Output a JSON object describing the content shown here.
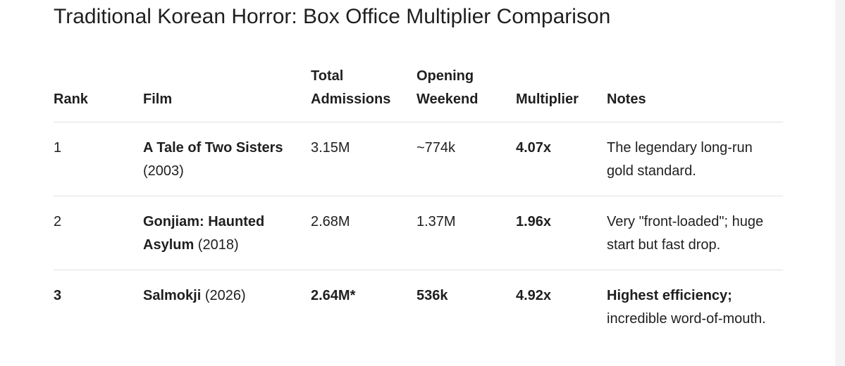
{
  "title": "Traditional Korean Horror: Box Office Multiplier Comparison",
  "columns": {
    "rank": "Rank",
    "film": "Film",
    "total_line1": "Total",
    "total_line2": "Admissions",
    "opening_line1": "Opening",
    "opening_line2": "Weekend",
    "multiplier": "Multiplier",
    "notes": "Notes"
  },
  "rows": [
    {
      "rank": "1",
      "film_title": "A Tale of Two Sisters",
      "film_year": " (2003)",
      "total_admissions": "3.15M",
      "opening_weekend": "~774k",
      "multiplier": "4.07x",
      "notes_bold": "",
      "notes_text": "The legendary long-run gold standard."
    },
    {
      "rank": "2",
      "film_title": "Gonjiam: Haunted Asylum",
      "film_year": " (2018)",
      "total_admissions": "2.68M",
      "opening_weekend": "1.37M",
      "multiplier": "1.96x",
      "notes_bold": "",
      "notes_text": "Very \"front-loaded\"; huge start but fast drop."
    },
    {
      "rank": "3",
      "film_title": "Salmokji",
      "film_year": " (2026)",
      "total_admissions": "2.64M*",
      "opening_weekend": "536k",
      "multiplier": "4.92x",
      "notes_bold": "Highest efficiency;",
      "notes_text": " incredible word-of-mouth."
    }
  ]
}
